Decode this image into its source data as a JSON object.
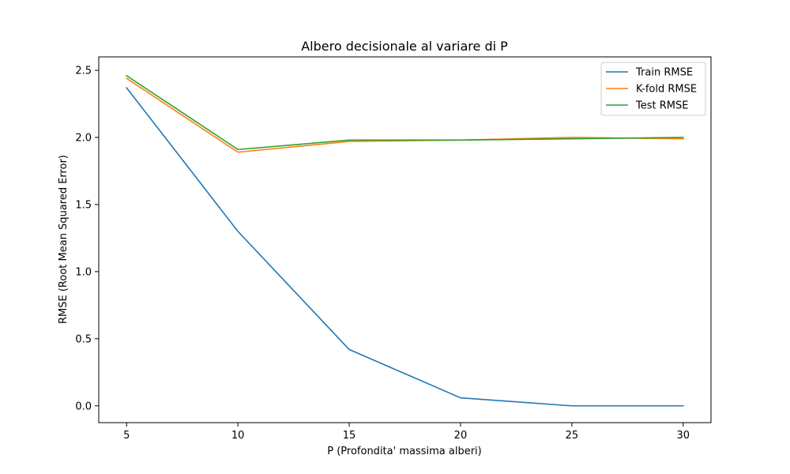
{
  "chart_data": {
    "type": "line",
    "title": "Albero decisionale al variare di P",
    "xlabel": "P (Profondita' massima alberi)",
    "ylabel": "RMSE (Root Mean Squared Error)",
    "x": [
      5,
      10,
      15,
      20,
      25,
      30
    ],
    "xlim": [
      3.75,
      31.25
    ],
    "ylim": [
      -0.125,
      2.6
    ],
    "xticks": [
      5,
      10,
      15,
      20,
      25,
      30
    ],
    "yticks": [
      0.0,
      0.5,
      1.0,
      1.5,
      2.0,
      2.5
    ],
    "ytick_labels": [
      "0.0",
      "0.5",
      "1.0",
      "1.5",
      "2.0",
      "2.5"
    ],
    "xtick_labels": [
      "5",
      "10",
      "15",
      "20",
      "25",
      "30"
    ],
    "grid": false,
    "legend_position": "top-right",
    "series": [
      {
        "name": "Train RMSE",
        "color": "#1f77b4",
        "values": [
          2.37,
          1.3,
          0.42,
          0.06,
          0.0,
          0.0
        ]
      },
      {
        "name": "K-fold RMSE",
        "color": "#ff7f0e",
        "values": [
          2.44,
          1.89,
          1.97,
          1.98,
          2.0,
          1.99
        ]
      },
      {
        "name": "Test RMSE",
        "color": "#2ca02c",
        "values": [
          2.46,
          1.91,
          1.98,
          1.98,
          1.99,
          2.0
        ]
      }
    ]
  }
}
